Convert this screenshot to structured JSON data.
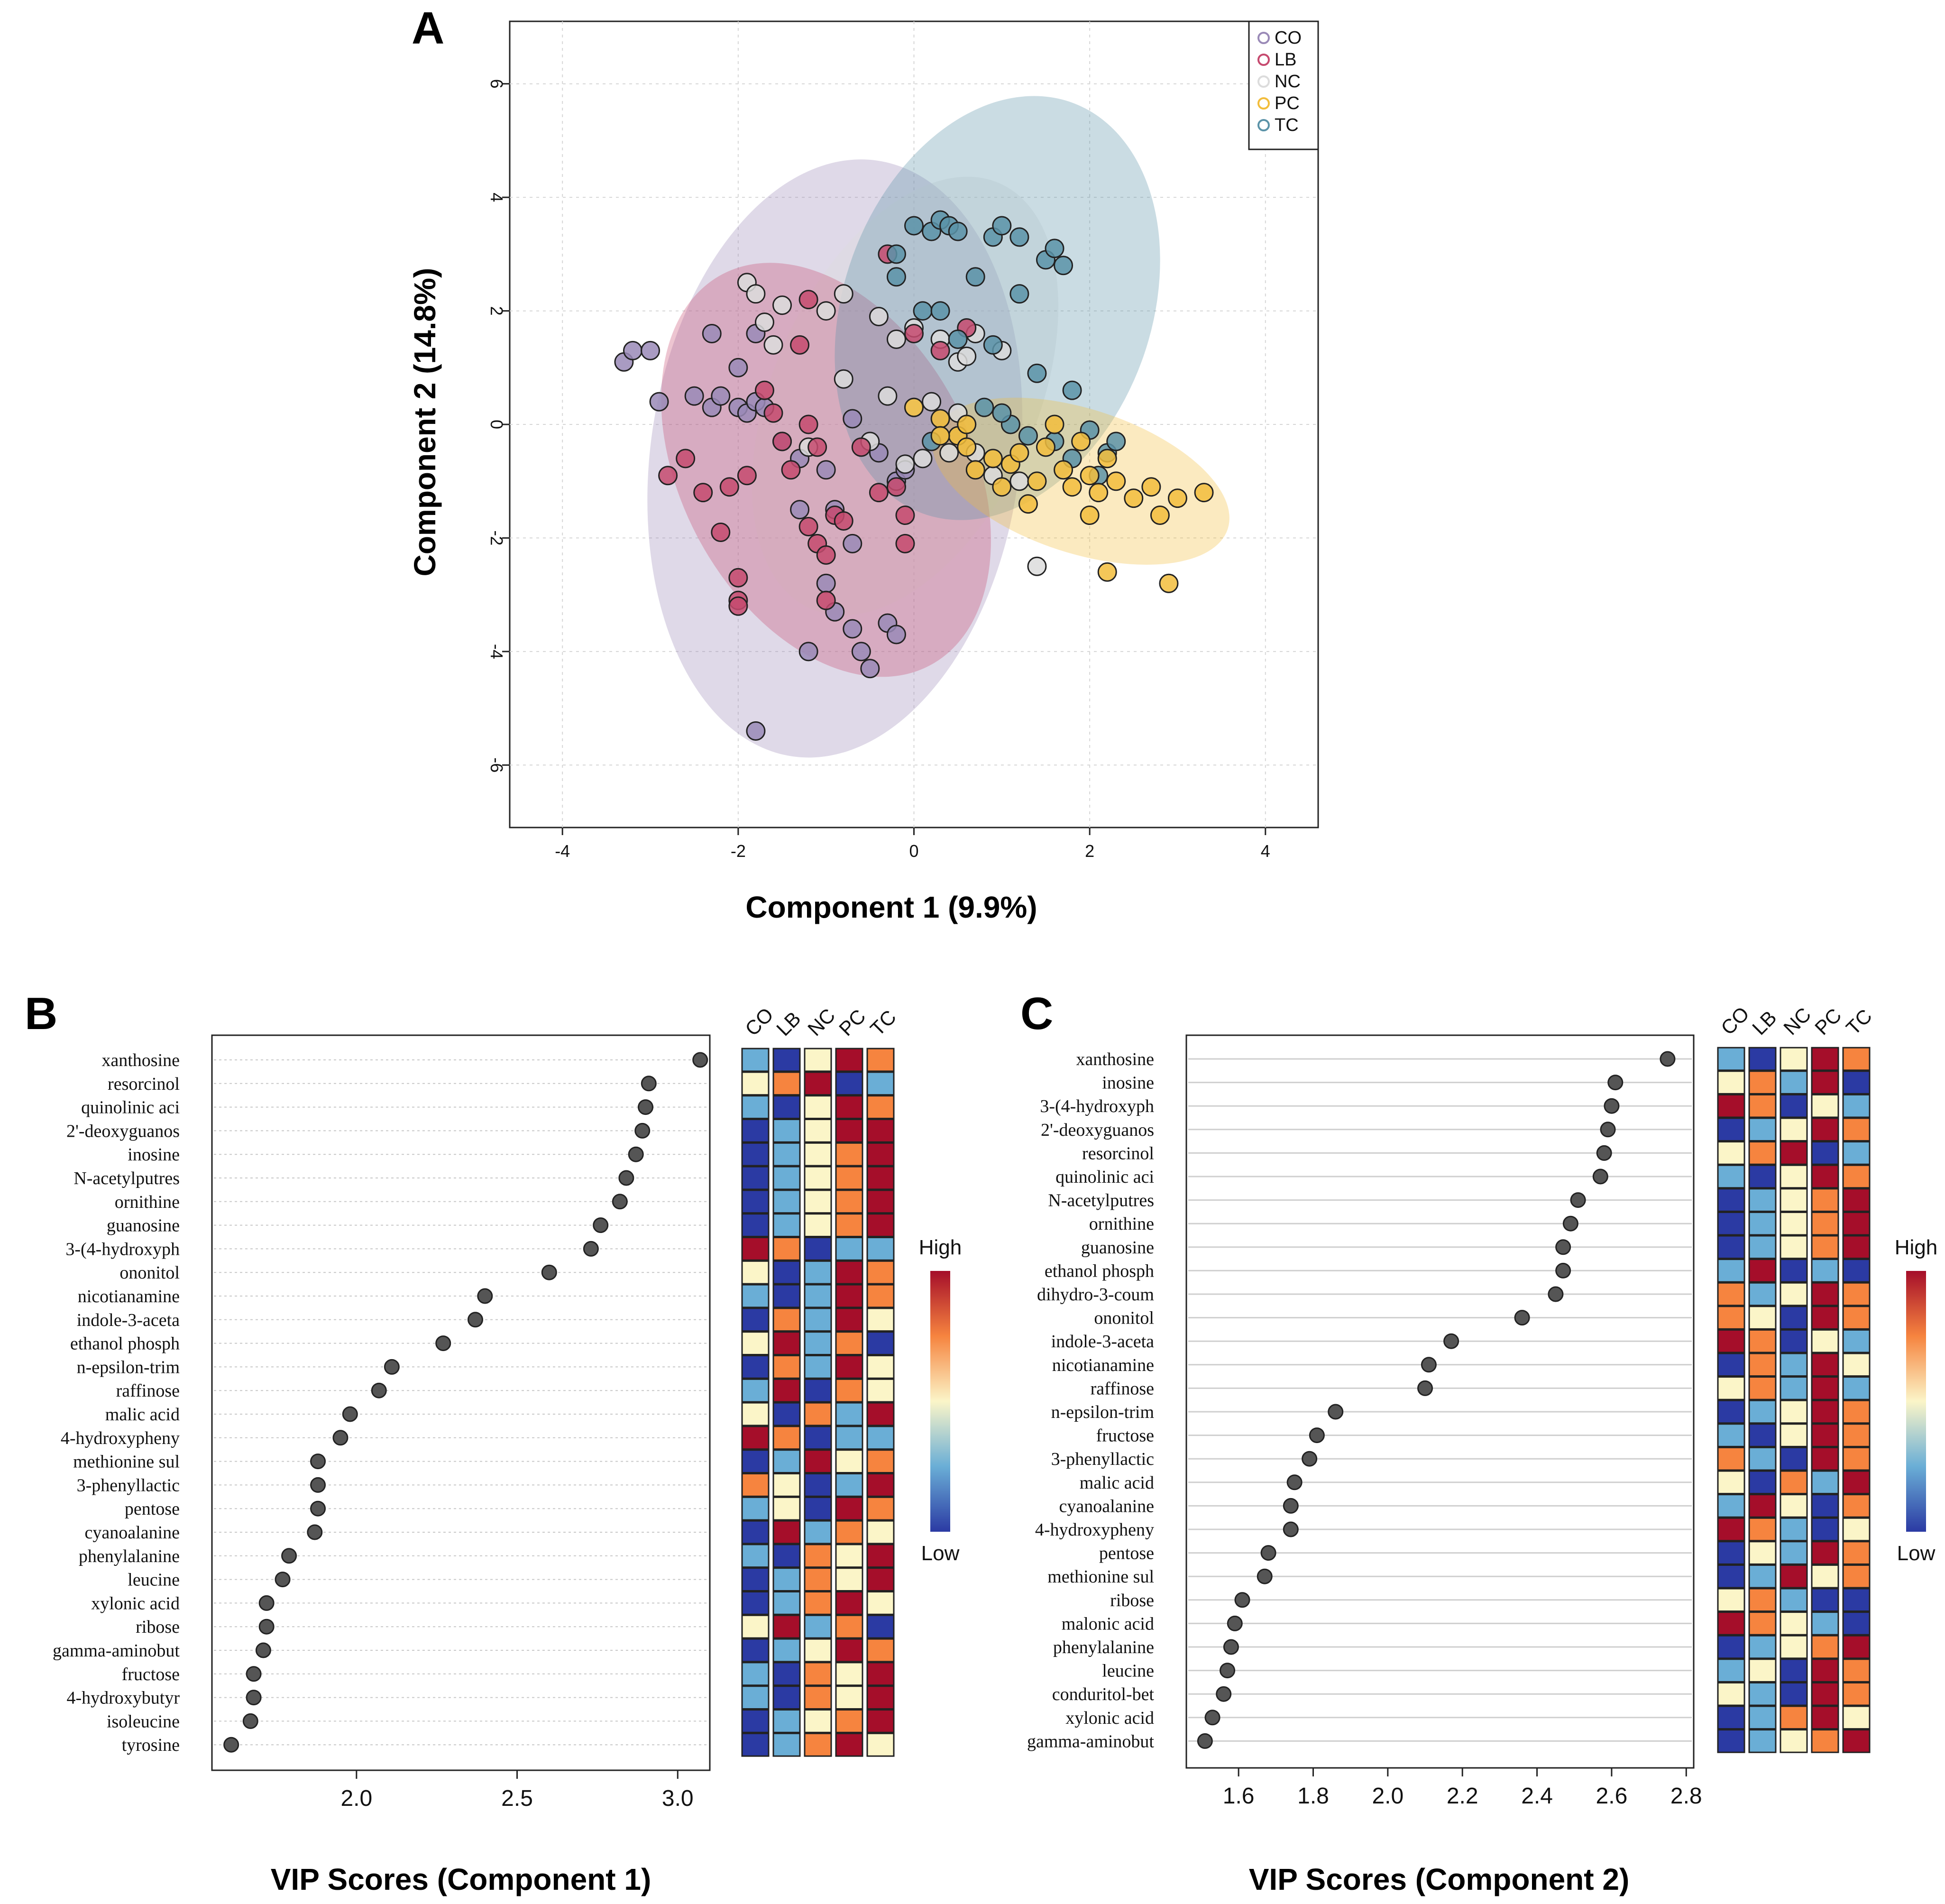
{
  "colors": {
    "CO": "#9a8ab7",
    "LB": "#c64a6f",
    "NC": "#dcdcdc",
    "PC": "#f2bd3c",
    "TC": "#5b93a8",
    "heat_low": "#2b3aa3",
    "heat_mid": "#fbf5c8",
    "heat_high": "#a50e2a"
  },
  "panel_labels": {
    "a": "A",
    "b": "B",
    "c": "C"
  },
  "chart_data": [
    {
      "id": "A",
      "type": "scatter",
      "xlabel": "Component 1 (9.9%)",
      "ylabel": "Component 2 (14.8%)",
      "xlim": [
        -4.6,
        4.6
      ],
      "ylim": [
        -7.1,
        7.1
      ],
      "xticks": [
        -4,
        -2,
        0,
        2,
        4
      ],
      "yticks": [
        -6,
        -4,
        -2,
        0,
        2,
        4,
        6
      ],
      "grid": true,
      "legend_position": "top-right",
      "groups": [
        "CO",
        "LB",
        "NC",
        "PC",
        "TC"
      ],
      "ellipses": [
        {
          "group": "CO",
          "cx": -0.9,
          "cy": -0.6,
          "rx": 2.1,
          "ry": 5.3,
          "angle_deg": 8
        },
        {
          "group": "NC",
          "cx": -0.1,
          "cy": 0.5,
          "rx": 1.5,
          "ry": 4.1,
          "angle_deg": 24
        },
        {
          "group": "LB",
          "cx": -1.0,
          "cy": -0.8,
          "rx": 1.65,
          "ry": 3.9,
          "angle_deg": -28
        },
        {
          "group": "TC",
          "cx": 0.95,
          "cy": 2.05,
          "rx": 1.75,
          "ry": 3.85,
          "angle_deg": 20
        },
        {
          "group": "PC",
          "cx": 1.9,
          "cy": -1.0,
          "rx": 0.82,
          "ry": 2.72,
          "angle_deg": -72
        }
      ],
      "points": {
        "CO": [
          [
            -3.3,
            1.1
          ],
          [
            -3.2,
            1.3
          ],
          [
            -3.0,
            1.3
          ],
          [
            -2.9,
            0.4
          ],
          [
            -2.5,
            0.5
          ],
          [
            -2.3,
            0.3
          ],
          [
            -2.2,
            0.5
          ],
          [
            -2.0,
            0.3
          ],
          [
            -1.9,
            0.2
          ],
          [
            -1.8,
            0.4
          ],
          [
            -1.7,
            0.3
          ],
          [
            -1.5,
            -0.3
          ],
          [
            -1.3,
            -0.6
          ],
          [
            -1.0,
            -0.8
          ],
          [
            -0.7,
            0.1
          ],
          [
            -0.4,
            -0.5
          ],
          [
            -0.2,
            -1.0
          ],
          [
            -0.1,
            -0.8
          ],
          [
            -2.3,
            1.6
          ],
          [
            -2.0,
            1.0
          ],
          [
            -1.8,
            1.6
          ],
          [
            -0.9,
            -1.5
          ],
          [
            -0.7,
            -2.1
          ],
          [
            -0.9,
            -3.3
          ],
          [
            -0.7,
            -3.6
          ],
          [
            -0.3,
            -3.5
          ],
          [
            -0.2,
            -3.7
          ],
          [
            -0.6,
            -4.0
          ],
          [
            -1.2,
            -4.0
          ],
          [
            -0.5,
            -4.3
          ],
          [
            -1.8,
            -5.4
          ],
          [
            -1.0,
            -2.8
          ],
          [
            -1.3,
            -1.5
          ]
        ],
        "LB": [
          [
            -2.8,
            -0.9
          ],
          [
            -2.6,
            -0.6
          ],
          [
            -2.4,
            -1.2
          ],
          [
            -2.2,
            -1.9
          ],
          [
            -2.0,
            -2.7
          ],
          [
            -2.0,
            -3.1
          ],
          [
            -2.1,
            -1.1
          ],
          [
            -1.9,
            -0.9
          ],
          [
            -1.7,
            0.6
          ],
          [
            -1.6,
            0.2
          ],
          [
            -1.5,
            -0.3
          ],
          [
            -1.4,
            -0.8
          ],
          [
            -1.2,
            -1.8
          ],
          [
            -1.1,
            -2.1
          ],
          [
            -1.0,
            -2.3
          ],
          [
            -0.9,
            -1.6
          ],
          [
            -0.8,
            -1.7
          ],
          [
            -0.6,
            -0.4
          ],
          [
            -0.4,
            -1.2
          ],
          [
            -0.2,
            -1.1
          ],
          [
            -0.1,
            -1.6
          ],
          [
            -1.1,
            -0.4
          ],
          [
            -1.3,
            1.4
          ],
          [
            -1.2,
            2.2
          ],
          [
            -0.3,
            3.0
          ],
          [
            0.0,
            1.6
          ],
          [
            0.3,
            1.3
          ],
          [
            0.6,
            1.7
          ],
          [
            -0.1,
            -2.1
          ],
          [
            -1.2,
            0.0
          ],
          [
            -2.0,
            -3.2
          ],
          [
            -1.0,
            -3.1
          ]
        ],
        "NC": [
          [
            -1.9,
            2.5
          ],
          [
            -1.8,
            2.3
          ],
          [
            -1.7,
            1.8
          ],
          [
            -1.5,
            2.1
          ],
          [
            -1.6,
            1.4
          ],
          [
            -1.0,
            2.0
          ],
          [
            -0.8,
            2.3
          ],
          [
            -0.4,
            1.9
          ],
          [
            -0.2,
            1.5
          ],
          [
            0.0,
            1.7
          ],
          [
            0.3,
            1.5
          ],
          [
            0.5,
            1.1
          ],
          [
            0.7,
            1.6
          ],
          [
            -0.8,
            0.8
          ],
          [
            -0.3,
            0.5
          ],
          [
            0.2,
            0.4
          ],
          [
            0.5,
            0.2
          ],
          [
            0.7,
            -0.5
          ],
          [
            0.9,
            -0.9
          ],
          [
            0.4,
            -0.5
          ],
          [
            0.0,
            0.3
          ],
          [
            -0.1,
            -0.7
          ],
          [
            0.1,
            -0.6
          ],
          [
            1.2,
            -1.0
          ],
          [
            1.4,
            -2.5
          ],
          [
            0.6,
            1.2
          ],
          [
            1.0,
            1.3
          ],
          [
            -1.2,
            -0.4
          ],
          [
            -0.5,
            -0.3
          ]
        ],
        "PC": [
          [
            0.0,
            0.3
          ],
          [
            0.3,
            0.1
          ],
          [
            0.5,
            -0.2
          ],
          [
            0.6,
            -0.4
          ],
          [
            0.7,
            -0.8
          ],
          [
            0.9,
            -0.6
          ],
          [
            1.0,
            -1.1
          ],
          [
            1.1,
            -0.7
          ],
          [
            1.2,
            -0.5
          ],
          [
            1.4,
            -1.0
          ],
          [
            1.5,
            -0.4
          ],
          [
            1.6,
            0.0
          ],
          [
            1.7,
            -0.8
          ],
          [
            1.8,
            -1.1
          ],
          [
            1.9,
            -0.3
          ],
          [
            2.0,
            -0.9
          ],
          [
            2.1,
            -1.2
          ],
          [
            2.2,
            -0.6
          ],
          [
            2.3,
            -1.0
          ],
          [
            2.5,
            -1.3
          ],
          [
            2.7,
            -1.1
          ],
          [
            2.8,
            -1.6
          ],
          [
            3.0,
            -1.3
          ],
          [
            3.3,
            -1.2
          ],
          [
            2.2,
            -2.6
          ],
          [
            2.9,
            -2.8
          ],
          [
            0.3,
            -0.2
          ],
          [
            0.6,
            0.0
          ],
          [
            1.3,
            -1.4
          ],
          [
            2.0,
            -1.6
          ]
        ],
        "TC": [
          [
            0.0,
            3.5
          ],
          [
            0.2,
            3.4
          ],
          [
            0.3,
            3.6
          ],
          [
            0.4,
            3.5
          ],
          [
            0.9,
            3.3
          ],
          [
            1.0,
            3.5
          ],
          [
            1.2,
            3.3
          ],
          [
            1.5,
            2.9
          ],
          [
            1.6,
            3.1
          ],
          [
            1.7,
            2.8
          ],
          [
            0.7,
            2.6
          ],
          [
            1.2,
            2.3
          ],
          [
            -0.2,
            2.6
          ],
          [
            0.1,
            2.0
          ],
          [
            0.3,
            2.0
          ],
          [
            0.5,
            1.5
          ],
          [
            0.9,
            1.4
          ],
          [
            1.4,
            0.9
          ],
          [
            1.8,
            0.6
          ],
          [
            0.8,
            0.3
          ],
          [
            1.1,
            0.0
          ],
          [
            1.3,
            -0.2
          ],
          [
            1.6,
            -0.3
          ],
          [
            1.8,
            -0.6
          ],
          [
            2.0,
            -0.1
          ],
          [
            2.2,
            -0.5
          ],
          [
            2.3,
            -0.3
          ],
          [
            2.1,
            -0.9
          ],
          [
            -0.2,
            3.0
          ],
          [
            0.5,
            3.4
          ],
          [
            0.2,
            -0.3
          ],
          [
            1.0,
            0.2
          ]
        ]
      }
    },
    {
      "id": "B",
      "type": "scatter",
      "xlabel": "VIP Scores (Component  1)",
      "xlim": [
        1.55,
        3.1
      ],
      "xticks": [
        "2.0",
        "2.5",
        "3.0"
      ],
      "grid": true,
      "categories": [
        "xanthosine",
        "resorcinol",
        "quinolinic aci",
        "2'-deoxyguanos",
        "inosine",
        "N-acetylputres",
        "ornithine",
        "guanosine",
        "3-(4-hydroxyph",
        "ononitol",
        "nicotianamine",
        "indole-3-aceta",
        "ethanol phosph",
        "n-epsilon-trim",
        "raffinose",
        "malic acid",
        "4-hydroxypheny",
        "methionine sul",
        "3-phenyllactic",
        "pentose",
        "cyanoalanine",
        "phenylalanine",
        "leucine",
        "xylonic acid",
        "ribose",
        "gamma-aminobut",
        "fructose",
        "4-hydroxybutyr",
        "isoleucine",
        "tyrosine"
      ],
      "values": [
        3.07,
        2.91,
        2.9,
        2.89,
        2.87,
        2.84,
        2.82,
        2.76,
        2.73,
        2.6,
        2.4,
        2.37,
        2.27,
        2.11,
        2.07,
        1.98,
        1.95,
        1.88,
        1.88,
        1.88,
        1.87,
        1.79,
        1.77,
        1.72,
        1.72,
        1.71,
        1.68,
        1.68,
        1.67,
        1.61
      ],
      "heatmap_groups": [
        "CO",
        "LB",
        "NC",
        "PC",
        "TC"
      ],
      "heatmap_levels": [
        [
          1,
          0,
          2,
          4,
          3
        ],
        [
          2,
          3,
          4,
          0,
          1
        ],
        [
          1,
          0,
          2,
          4,
          3
        ],
        [
          0,
          1,
          2,
          4,
          4
        ],
        [
          0,
          1,
          2,
          3,
          4
        ],
        [
          0,
          1,
          2,
          3,
          4
        ],
        [
          0,
          1,
          2,
          3,
          4
        ],
        [
          0,
          1,
          2,
          3,
          4
        ],
        [
          4,
          3,
          0,
          1,
          1
        ],
        [
          2,
          0,
          1,
          4,
          3
        ],
        [
          1,
          0,
          1,
          4,
          3
        ],
        [
          0,
          3,
          1,
          4,
          2
        ],
        [
          2,
          4,
          1,
          3,
          0
        ],
        [
          0,
          3,
          1,
          4,
          2
        ],
        [
          1,
          4,
          0,
          3,
          2
        ],
        [
          2,
          0,
          3,
          1,
          4
        ],
        [
          4,
          3,
          0,
          1,
          1
        ],
        [
          0,
          1,
          4,
          2,
          3
        ],
        [
          3,
          2,
          0,
          1,
          4
        ],
        [
          1,
          2,
          0,
          4,
          3
        ],
        [
          0,
          4,
          1,
          3,
          2
        ],
        [
          1,
          0,
          3,
          2,
          4
        ],
        [
          0,
          1,
          3,
          2,
          4
        ],
        [
          0,
          1,
          3,
          4,
          2
        ],
        [
          2,
          4,
          1,
          3,
          0
        ],
        [
          0,
          1,
          2,
          4,
          3
        ],
        [
          1,
          0,
          3,
          2,
          4
        ],
        [
          1,
          0,
          3,
          2,
          4
        ],
        [
          0,
          1,
          2,
          3,
          4
        ],
        [
          0,
          1,
          3,
          4,
          2
        ]
      ],
      "legend": {
        "high": "High",
        "low": "Low"
      }
    },
    {
      "id": "C",
      "type": "scatter",
      "xlabel": "VIP Scores (Component 2)",
      "xlim": [
        1.46,
        2.82
      ],
      "xticks": [
        "1.6",
        "1.8",
        "2.0",
        "2.2",
        "2.4",
        "2.6",
        "2.8"
      ],
      "grid": true,
      "categories": [
        "xanthosine",
        "inosine",
        "3-(4-hydroxyph",
        "2'-deoxyguanos",
        "resorcinol",
        "quinolinic aci",
        "N-acetylputres",
        "ornithine",
        "guanosine",
        "ethanol phosph",
        "dihydro-3-coum",
        "ononitol",
        "indole-3-aceta",
        "nicotianamine",
        "raffinose",
        "n-epsilon-trim",
        "fructose",
        "3-phenyllactic",
        "malic acid",
        "cyanoalanine",
        "4-hydroxypheny",
        "pentose",
        "methionine sul",
        "ribose",
        "malonic acid",
        "phenylalanine",
        "leucine",
        "conduritol-bet",
        "xylonic acid",
        "gamma-aminobut"
      ],
      "values": [
        2.75,
        2.61,
        2.6,
        2.59,
        2.58,
        2.57,
        2.51,
        2.49,
        2.47,
        2.47,
        2.45,
        2.36,
        2.17,
        2.11,
        2.1,
        1.86,
        1.81,
        1.79,
        1.75,
        1.74,
        1.74,
        1.68,
        1.67,
        1.61,
        1.59,
        1.58,
        1.57,
        1.56,
        1.53,
        1.51
      ],
      "heatmap_groups": [
        "CO",
        "LB",
        "NC",
        "PC",
        "TC"
      ],
      "heatmap_levels": [
        [
          1,
          0,
          2,
          4,
          3
        ],
        [
          2,
          3,
          1,
          4,
          0
        ],
        [
          4,
          3,
          0,
          2,
          1
        ],
        [
          0,
          1,
          2,
          4,
          3
        ],
        [
          2,
          3,
          4,
          0,
          1
        ],
        [
          1,
          0,
          2,
          4,
          3
        ],
        [
          0,
          1,
          2,
          3,
          4
        ],
        [
          0,
          1,
          2,
          3,
          4
        ],
        [
          0,
          1,
          2,
          3,
          4
        ],
        [
          1,
          4,
          0,
          1,
          0
        ],
        [
          3,
          1,
          2,
          4,
          3
        ],
        [
          3,
          2,
          0,
          4,
          3
        ],
        [
          4,
          3,
          0,
          2,
          1
        ],
        [
          0,
          3,
          1,
          4,
          2
        ],
        [
          2,
          3,
          1,
          4,
          1
        ],
        [
          0,
          1,
          2,
          4,
          3
        ],
        [
          1,
          0,
          2,
          4,
          3
        ],
        [
          3,
          1,
          0,
          4,
          3
        ],
        [
          2,
          0,
          3,
          1,
          4
        ],
        [
          1,
          4,
          2,
          0,
          3
        ],
        [
          4,
          3,
          1,
          0,
          2
        ],
        [
          0,
          2,
          1,
          4,
          3
        ],
        [
          0,
          1,
          4,
          2,
          3
        ],
        [
          2,
          3,
          1,
          0,
          0
        ],
        [
          4,
          3,
          2,
          1,
          0
        ],
        [
          0,
          1,
          2,
          3,
          4
        ],
        [
          1,
          2,
          0,
          4,
          3
        ],
        [
          2,
          1,
          0,
          4,
          3
        ],
        [
          0,
          1,
          3,
          4,
          2
        ],
        [
          0,
          1,
          2,
          3,
          4
        ]
      ],
      "legend": {
        "high": "High",
        "low": "Low"
      }
    }
  ]
}
